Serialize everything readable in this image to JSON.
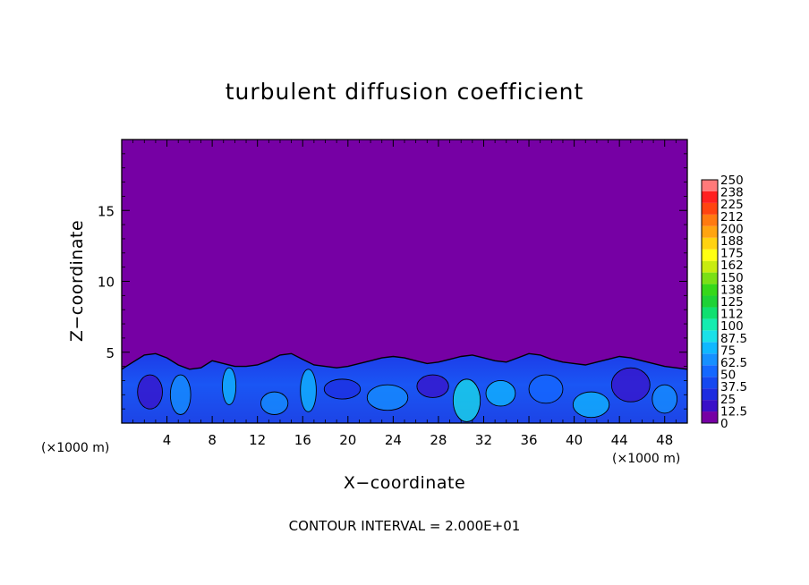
{
  "chart_data": {
    "type": "heatmap",
    "title": "turbulent diffusion coefficient",
    "xlabel": "X−coordinate",
    "ylabel": "Z−coordinate",
    "x_unit": "(×1000 m)",
    "x_unit_right": "(×1000 m)",
    "xlim": [
      0,
      50
    ],
    "ylim": [
      0,
      20
    ],
    "x_ticks": [
      4,
      8,
      12,
      16,
      20,
      24,
      28,
      32,
      36,
      40,
      44,
      48
    ],
    "x_tick_labels": [
      "4",
      "8",
      "12",
      "16",
      "20",
      "24",
      "28",
      "32",
      "36",
      "40",
      "44",
      "48"
    ],
    "y_ticks": [
      5,
      10,
      15
    ],
    "y_tick_labels": [
      "5",
      "10",
      "15"
    ],
    "colorbar_labels": [
      "0",
      "12.5",
      "25",
      "37.5",
      "50",
      "62.5",
      "75",
      "87.5",
      "100",
      "112",
      "125",
      "138",
      "150",
      "162",
      "175",
      "188",
      "200",
      "212",
      "225",
      "238",
      "250"
    ],
    "colorbar_colors": [
      "#7600a4",
      "#3a10c8",
      "#1d2ce0",
      "#1548f0",
      "#1468ff",
      "#1690ff",
      "#10b8ff",
      "#1ae0e8",
      "#14ecb0",
      "#10e070",
      "#1ed236",
      "#36d81a",
      "#7ae016",
      "#c8ec10",
      "#ffff10",
      "#ffd210",
      "#ffa410",
      "#ff7a10",
      "#ff4410",
      "#ff2020",
      "#ff7a7a"
    ],
    "boundary_layer_top": [
      3.8,
      4.3,
      4.8,
      4.9,
      4.6,
      4.1,
      3.8,
      3.9,
      4.4,
      4.2,
      4.0,
      4.0,
      4.1,
      4.4,
      4.8,
      4.9,
      4.5,
      4.1,
      4.0,
      3.9,
      4.0,
      4.2,
      4.4,
      4.6,
      4.7,
      4.6,
      4.4,
      4.2,
      4.3,
      4.5,
      4.7,
      4.8,
      4.6,
      4.4,
      4.3,
      4.6,
      4.9,
      4.8,
      4.5,
      4.3,
      4.2,
      4.1,
      4.3,
      4.5,
      4.7,
      4.6,
      4.4,
      4.2,
      4.0,
      3.9,
      3.8
    ],
    "background_value": 0,
    "contour_interval_note": "CONTOUR INTERVAL = 2.000E+01"
  }
}
